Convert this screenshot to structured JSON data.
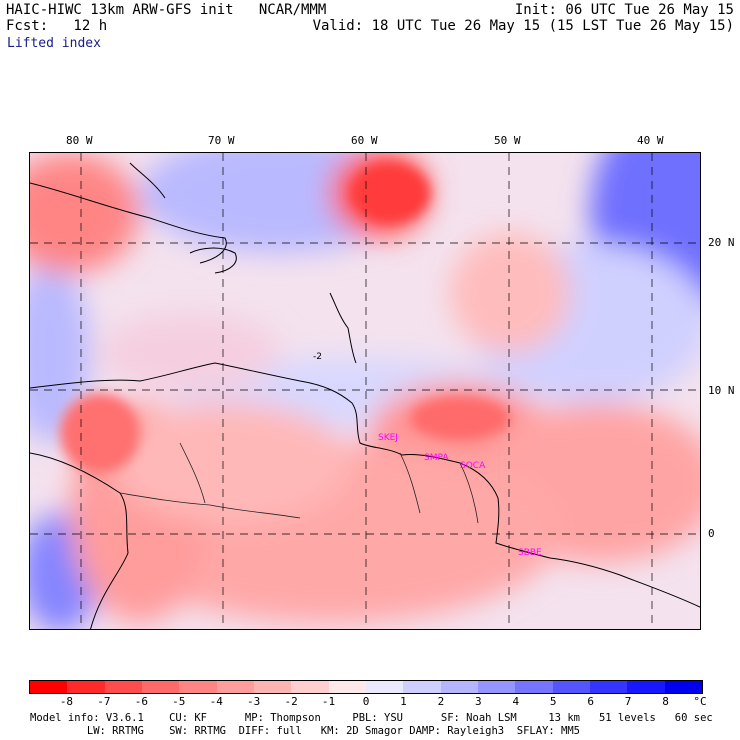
{
  "header": {
    "title_left": "HAIC-HIWC 13km ARW-GFS init   NCAR/MMM",
    "fcst_label": "Fcst:   12 h",
    "field_name": "Lifted index",
    "init_text": "Init: 06 UTC Tue 26 May 15",
    "valid_text": "Valid: 18 UTC Tue 26 May 15 (15 LST Tue 26 May 15)"
  },
  "map": {
    "lon_labels": [
      "80 W",
      "70 W",
      "60 W",
      "50 W",
      "40 W"
    ],
    "lat_labels": [
      "20 N",
      "10 N",
      "0"
    ],
    "station_labels": [
      "SKEJ",
      "SMPA",
      "SOCA",
      "SBBE"
    ],
    "contour_labels": [
      "-2"
    ]
  },
  "colorbar": {
    "ticks": [
      "-8",
      "-7",
      "-6",
      "-5",
      "-4",
      "-3",
      "-2",
      "-1",
      "0",
      "1",
      "2",
      "3",
      "4",
      "5",
      "6",
      "7",
      "8"
    ],
    "unit": "°C",
    "colors": [
      "#ff0000",
      "#ff2a2a",
      "#ff4d4d",
      "#ff6b6b",
      "#ff8585",
      "#ff9c9c",
      "#ffb4b4",
      "#ffcfcf",
      "#ffe8e8",
      "#eaeaff",
      "#cfcfff",
      "#b4b4ff",
      "#9595ff",
      "#7575ff",
      "#5555ff",
      "#3535ff",
      "#1818ff",
      "#0000ee"
    ]
  },
  "footer": {
    "line1": "Model info: V3.6.1    CU: KF      MP: Thompson     PBL: YSU      SF: Noah LSM     13 km   51 levels   60 sec",
    "line2": "         LW: RRTMG    SW: RRTMG  DIFF: full   KM: 2D Smagor DAMP: Rayleigh3  SFLAY: MM5"
  }
}
